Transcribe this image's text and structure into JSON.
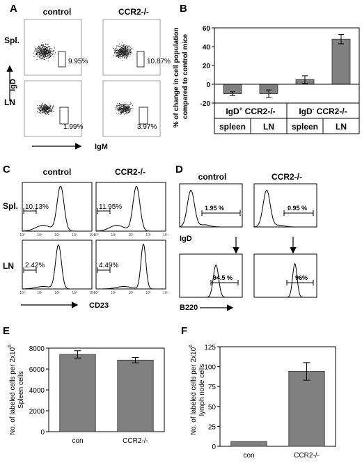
{
  "panel_labels": {
    "A": "A",
    "B": "B",
    "C": "C",
    "D": "D",
    "E": "E",
    "F": "F"
  },
  "panel_a": {
    "col_control": "control",
    "col_ko": "CCR2-/-",
    "row_spl": "Spl.",
    "row_ln": "LN",
    "y_axis": "IgD",
    "x_axis": "IgM",
    "pct_spl_control": "9.95%",
    "pct_spl_ko": "10.87%",
    "pct_ln_control": "1.99%",
    "pct_ln_ko": "3.97%"
  },
  "panel_c": {
    "col_control": "control",
    "col_ko": "CCR2-/-",
    "row_spl": "Spl.",
    "row_ln": "LN",
    "x_axis": "CD23",
    "pct_spl_control": "10.13%",
    "pct_spl_ko": "11.95%",
    "pct_ln_control": "2.42%",
    "pct_ln_ko": "4.49%",
    "ticks": [
      "10⁰",
      "10¹",
      "10²",
      "10³",
      "10⁴"
    ]
  },
  "panel_d": {
    "col_control": "control",
    "col_ko": "CCR2-/-",
    "top_axis": "IgD",
    "bottom_axis": "B220",
    "pct_top_control": "1.95 %",
    "pct_top_ko": "0.95 %",
    "pct_bottom_control": "94.5 %",
    "pct_bottom_ko": "96%"
  },
  "chart_data": [
    {
      "type": "bar",
      "panel": "B",
      "ylabel": "% of change in cell population compared to control mice",
      "categories": [
        "spleen",
        "LN",
        "spleen",
        "LN"
      ],
      "groups": [
        "IgD⁺ CCR2-/-",
        "IgD⁻ CCR2-/-"
      ],
      "group_label_parts": [
        {
          "pre": "IgD",
          "sup": "+",
          "post": " CCR2-/-"
        },
        {
          "pre": "IgD",
          "sup": "-",
          "post": "  CCR2-/-"
        }
      ],
      "values": [
        -10,
        -10,
        5,
        48
      ],
      "errors": [
        2,
        4,
        4,
        5
      ],
      "ylim": [
        -20,
        60
      ],
      "yticks": [
        -20,
        0,
        20,
        40,
        60
      ],
      "color": "#808080"
    },
    {
      "type": "bar",
      "panel": "E",
      "ylabel_parts": {
        "line1_pre": "No. of labeled cells per 2x10",
        "sup": "6",
        "line2": "Spleen  cells"
      },
      "categories": [
        "con",
        "CCR2-/-"
      ],
      "values": [
        7400,
        6850
      ],
      "errors": [
        350,
        250
      ],
      "ylim": [
        0,
        8000
      ],
      "yticks": [
        0,
        2000,
        4000,
        6000,
        8000
      ],
      "color": "#808080"
    },
    {
      "type": "bar",
      "panel": "F",
      "ylabel_parts": {
        "line1_pre": "No. of labeled cells per 2x10",
        "sup": "6",
        "line2": "lymph node cells"
      },
      "categories": [
        "con",
        "CCR2-/-"
      ],
      "values": [
        6,
        94
      ],
      "errors": [
        0,
        11
      ],
      "ylim": [
        0,
        125
      ],
      "yticks": [
        0,
        25,
        50,
        75,
        100,
        125
      ],
      "color": "#808080"
    }
  ]
}
